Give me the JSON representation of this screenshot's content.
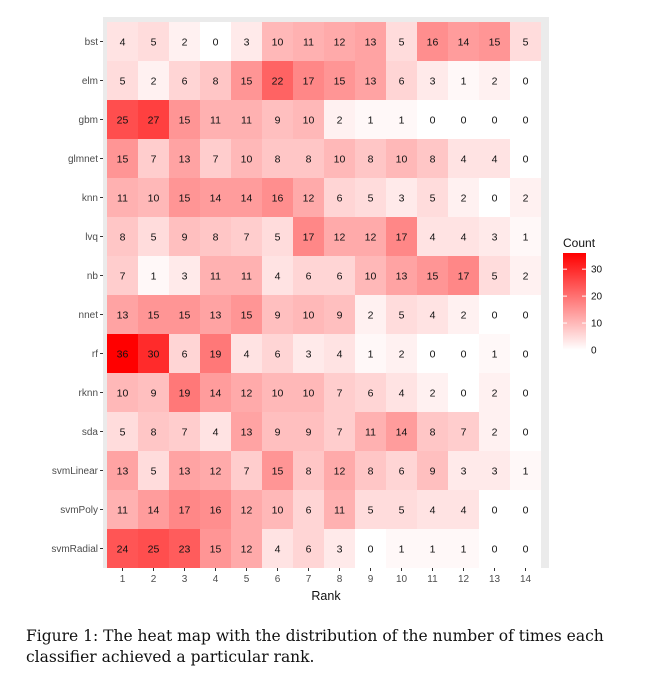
{
  "chart_data": {
    "type": "heatmap",
    "xlabel": "Rank",
    "ylabel": "",
    "x": [
      "1",
      "2",
      "3",
      "4",
      "5",
      "6",
      "7",
      "8",
      "9",
      "10",
      "11",
      "12",
      "13",
      "14"
    ],
    "y": [
      "bst",
      "elm",
      "gbm",
      "glmnet",
      "knn",
      "lvq",
      "nb",
      "nnet",
      "rf",
      "rknn",
      "sda",
      "svmLinear",
      "svmPoly",
      "svmRadial"
    ],
    "values": [
      [
        4,
        5,
        2,
        0,
        3,
        10,
        11,
        12,
        13,
        5,
        16,
        14,
        15,
        5
      ],
      [
        5,
        2,
        6,
        8,
        15,
        22,
        17,
        15,
        13,
        6,
        3,
        1,
        2,
        0
      ],
      [
        25,
        27,
        15,
        11,
        11,
        9,
        10,
        2,
        1,
        1,
        0,
        0,
        0,
        0
      ],
      [
        15,
        7,
        13,
        7,
        10,
        8,
        8,
        10,
        8,
        10,
        8,
        4,
        4,
        0
      ],
      [
        11,
        10,
        15,
        14,
        14,
        16,
        12,
        6,
        5,
        3,
        5,
        2,
        0,
        2
      ],
      [
        8,
        5,
        9,
        8,
        7,
        5,
        17,
        12,
        12,
        17,
        4,
        4,
        3,
        1
      ],
      [
        7,
        1,
        3,
        11,
        11,
        4,
        6,
        6,
        10,
        13,
        15,
        17,
        5,
        2
      ],
      [
        13,
        15,
        15,
        13,
        15,
        9,
        10,
        9,
        2,
        5,
        4,
        2,
        0,
        0
      ],
      [
        36,
        30,
        6,
        19,
        4,
        6,
        3,
        4,
        1,
        2,
        0,
        0,
        1,
        0
      ],
      [
        10,
        9,
        19,
        14,
        12,
        10,
        10,
        7,
        6,
        4,
        2,
        0,
        2,
        0
      ],
      [
        5,
        8,
        7,
        4,
        13,
        9,
        9,
        7,
        11,
        14,
        8,
        7,
        2,
        0
      ],
      [
        13,
        5,
        13,
        12,
        7,
        15,
        8,
        12,
        8,
        6,
        9,
        3,
        3,
        1
      ],
      [
        11,
        14,
        17,
        16,
        12,
        10,
        6,
        11,
        5,
        5,
        4,
        4,
        0,
        0
      ],
      [
        24,
        25,
        23,
        15,
        12,
        4,
        6,
        3,
        0,
        1,
        1,
        1,
        0,
        0
      ]
    ],
    "legend": {
      "title": "Count",
      "ticks": [
        0,
        10,
        20,
        30
      ],
      "range": [
        0,
        36
      ],
      "low_color": "#ffffff",
      "high_color": "#ff0000"
    },
    "panel_background": "#ebebeb",
    "grid": false,
    "legend_position": "right"
  },
  "caption": "Figure 1: The heat map with the distribution of the number of times each classifier achieved a particular rank."
}
